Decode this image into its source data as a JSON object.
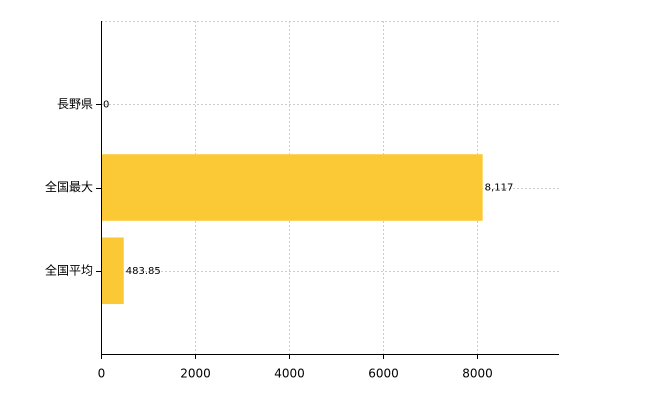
{
  "chart_data": {
    "type": "hbar",
    "categories": [
      "長野県",
      "全国最大",
      "全国平均"
    ],
    "values": [
      0,
      8117,
      483.85
    ],
    "value_labels": [
      "0",
      "8,117",
      "483.85"
    ],
    "color": "#fcc936",
    "xlim": [
      0,
      9740
    ],
    "xticks": [
      0,
      2000,
      4000,
      6000,
      8000
    ],
    "grid": true
  }
}
